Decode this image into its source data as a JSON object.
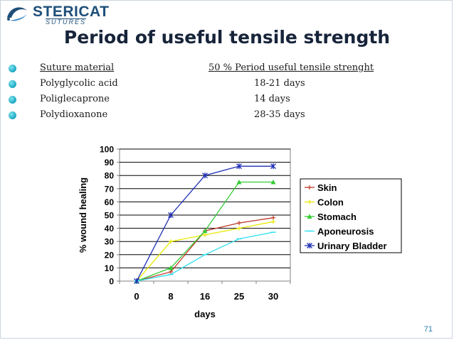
{
  "logo": {
    "brand": "STERICAT",
    "tagline": "SUTURES"
  },
  "slide": {
    "title": "Period of useful tensile strength",
    "number": "71"
  },
  "table": {
    "header": [
      "Suture material",
      "50 % Period useful tensile strenght"
    ],
    "rows": [
      [
        "Polyglycolic acid",
        "18-21 days"
      ],
      [
        "Poliglecaprone",
        "14 days"
      ],
      [
        "Polydioxanone",
        "28-35 days"
      ]
    ]
  },
  "colors": {
    "bullet": "#1aa6c0",
    "title": "#17243a",
    "slide_number": "#2b7fb3"
  },
  "chart_data": {
    "type": "line",
    "title": "",
    "xlabel": "days",
    "ylabel": "% wound healing",
    "categories": [
      "0",
      "8",
      "16",
      "25",
      "30"
    ],
    "ylim": [
      0,
      100
    ],
    "yticks": [
      0,
      10,
      20,
      30,
      40,
      50,
      60,
      70,
      80,
      90,
      100
    ],
    "grid": true,
    "legend": "right",
    "series": [
      {
        "name": "Skin",
        "values": [
          0,
          7,
          38,
          44,
          48
        ],
        "color": "#c0392b",
        "marker": "plus"
      },
      {
        "name": "Colon",
        "values": [
          0,
          30,
          35,
          40,
          45
        ],
        "color": "#e8e800",
        "marker": "plus"
      },
      {
        "name": "Stomach",
        "values": [
          0,
          10,
          38,
          75,
          75
        ],
        "color": "#33cc33",
        "marker": "triangle"
      },
      {
        "name": "Aponeurosis",
        "values": [
          0,
          5,
          20,
          32,
          37
        ],
        "color": "#33e0f0",
        "marker": "dash"
      },
      {
        "name": "Urinary Bladder",
        "values": [
          0,
          50,
          80,
          87,
          87
        ],
        "color": "#1f2fb5",
        "marker": "star"
      }
    ]
  }
}
